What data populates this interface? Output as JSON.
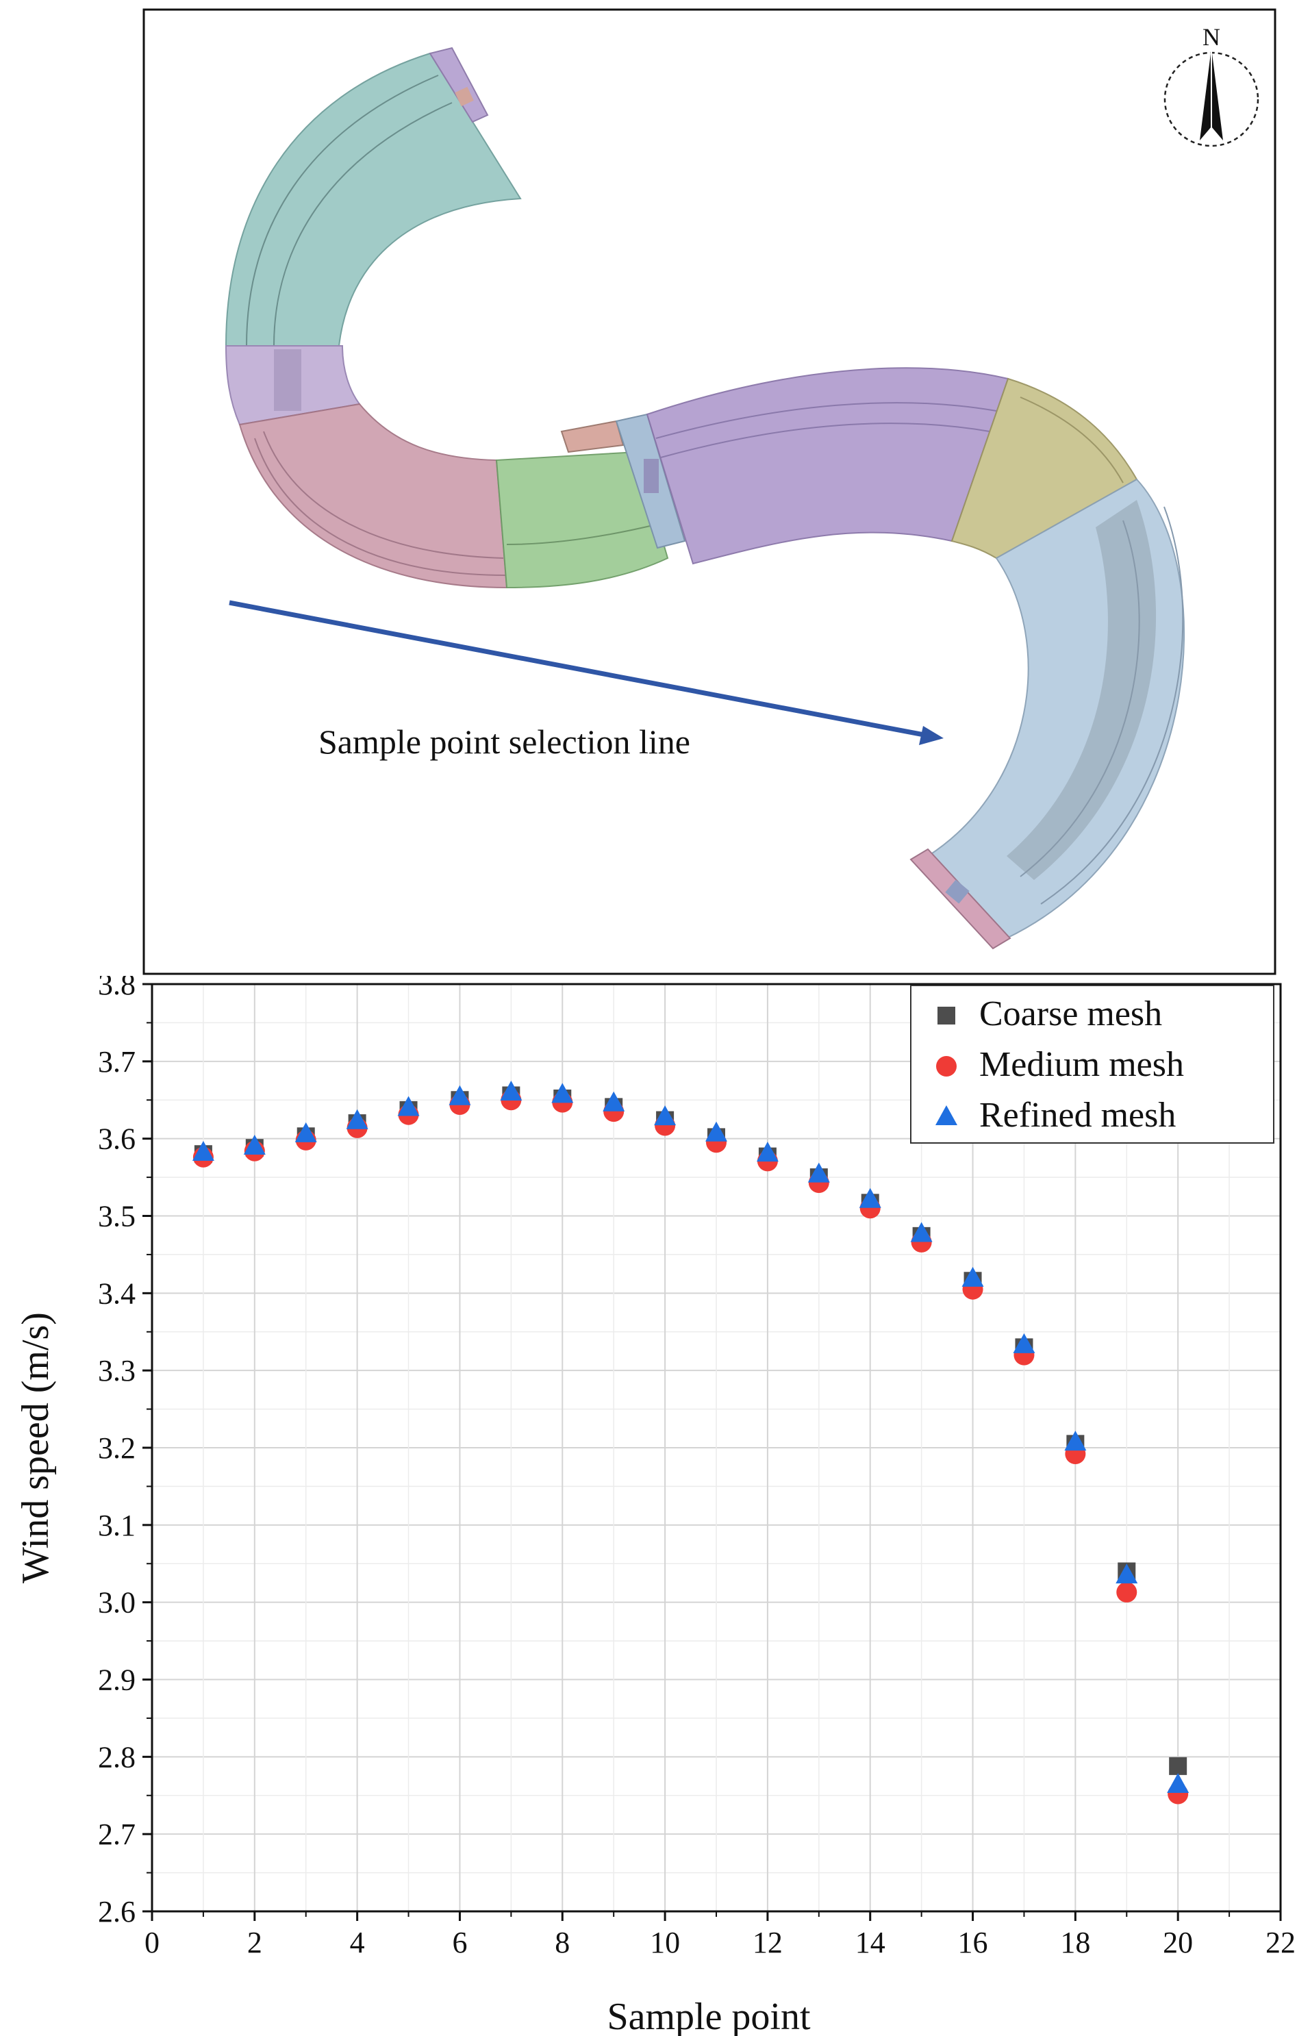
{
  "map": {
    "annotation": "Sample point selection line",
    "north_label": "N"
  },
  "chart_data": {
    "type": "scatter",
    "title": "",
    "xlabel": "Sample point",
    "ylabel": "Wind speed (m/s)",
    "xlim": [
      0,
      22
    ],
    "ylim": [
      2.6,
      3.8
    ],
    "x_ticks": [
      0,
      2,
      4,
      6,
      8,
      10,
      12,
      14,
      16,
      18,
      20,
      22
    ],
    "y_ticks": [
      "2.6",
      "2.7",
      "2.8",
      "2.9",
      "3.0",
      "3.1",
      "3.2",
      "3.3",
      "3.4",
      "3.5",
      "3.6",
      "3.7",
      "3.8"
    ],
    "grid": true,
    "legend_position": "top-right",
    "x": [
      1,
      2,
      3,
      4,
      5,
      6,
      7,
      8,
      9,
      10,
      11,
      12,
      13,
      14,
      15,
      16,
      17,
      18,
      19,
      20
    ],
    "series": [
      {
        "name": "Coarse mesh",
        "marker": "square",
        "color": "#4d4d4d",
        "values": [
          3.58,
          3.588,
          3.603,
          3.62,
          3.637,
          3.65,
          3.656,
          3.652,
          3.641,
          3.624,
          3.602,
          3.577,
          3.55,
          3.517,
          3.474,
          3.416,
          3.33,
          3.205,
          3.04,
          2.788
        ]
      },
      {
        "name": "Medium mesh",
        "marker": "circle",
        "color": "#ef3b36",
        "values": [
          3.576,
          3.584,
          3.598,
          3.614,
          3.631,
          3.644,
          3.65,
          3.647,
          3.635,
          3.617,
          3.595,
          3.571,
          3.543,
          3.51,
          3.466,
          3.405,
          3.32,
          3.192,
          3.013,
          2.752
        ]
      },
      {
        "name": "Refined mesh",
        "marker": "triangle",
        "color": "#1f6fe0",
        "values": [
          3.582,
          3.59,
          3.606,
          3.623,
          3.64,
          3.654,
          3.66,
          3.657,
          3.646,
          3.628,
          3.607,
          3.581,
          3.554,
          3.521,
          3.477,
          3.419,
          3.333,
          3.207,
          3.035,
          2.764
        ]
      }
    ]
  }
}
